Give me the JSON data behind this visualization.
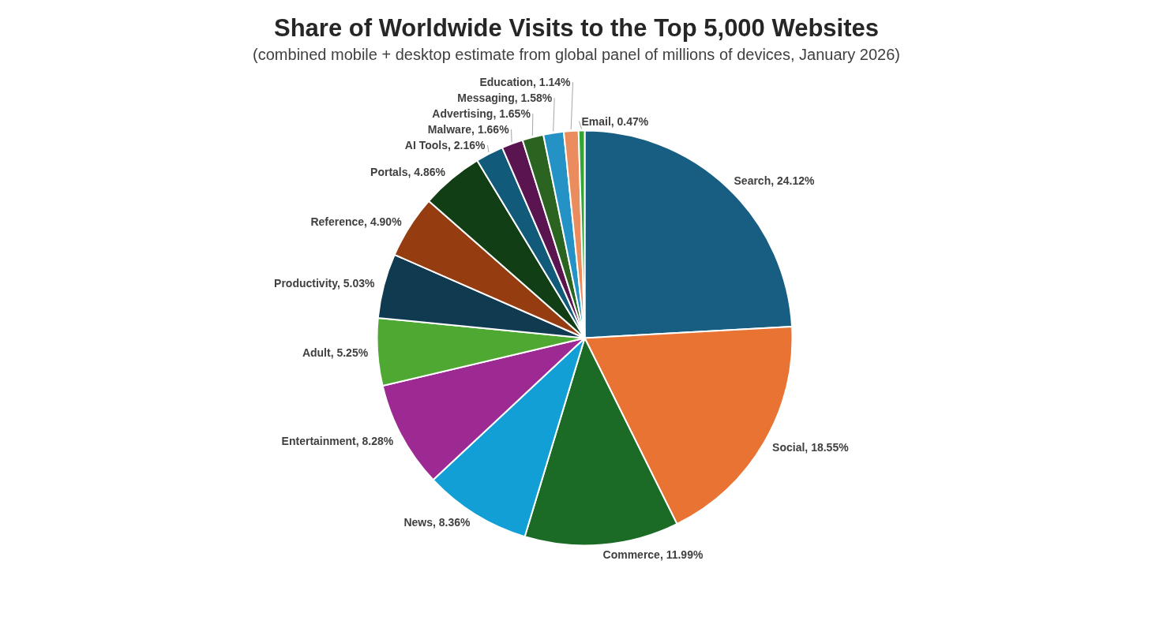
{
  "chart_data": {
    "type": "pie",
    "title": "Share of Worldwide Visits to the Top 5,000 Websites",
    "subtitle": "(combined mobile + desktop estimate from global panel of millions of devices, January 2026)",
    "categories": [
      "Search",
      "Social",
      "Commerce",
      "News",
      "Entertainment",
      "Adult",
      "Productivity",
      "Reference",
      "Portals",
      "AI Tools",
      "Malware",
      "Advertising",
      "Messaging",
      "Education",
      "Email"
    ],
    "values": [
      24.12,
      18.55,
      11.99,
      8.36,
      8.28,
      5.25,
      5.03,
      4.9,
      4.86,
      2.16,
      1.66,
      1.65,
      1.58,
      1.14,
      0.47
    ],
    "value_labels": [
      "24.12%",
      "18.55%",
      "11.99%",
      "8.36%",
      "8.28%",
      "5.25%",
      "5.03%",
      "4.90%",
      "4.86%",
      "2.16%",
      "1.66%",
      "1.65%",
      "1.58%",
      "1.14%",
      "0.47%"
    ],
    "colors": [
      "#175e82",
      "#e87332",
      "#1b6b26",
      "#129fd6",
      "#9c2a92",
      "#4ea832",
      "#0f3a50",
      "#953d10",
      "#123e16",
      "#125a7a",
      "#5a1550",
      "#2b6420",
      "#2592c6",
      "#eb8c5e",
      "#34a534"
    ]
  }
}
